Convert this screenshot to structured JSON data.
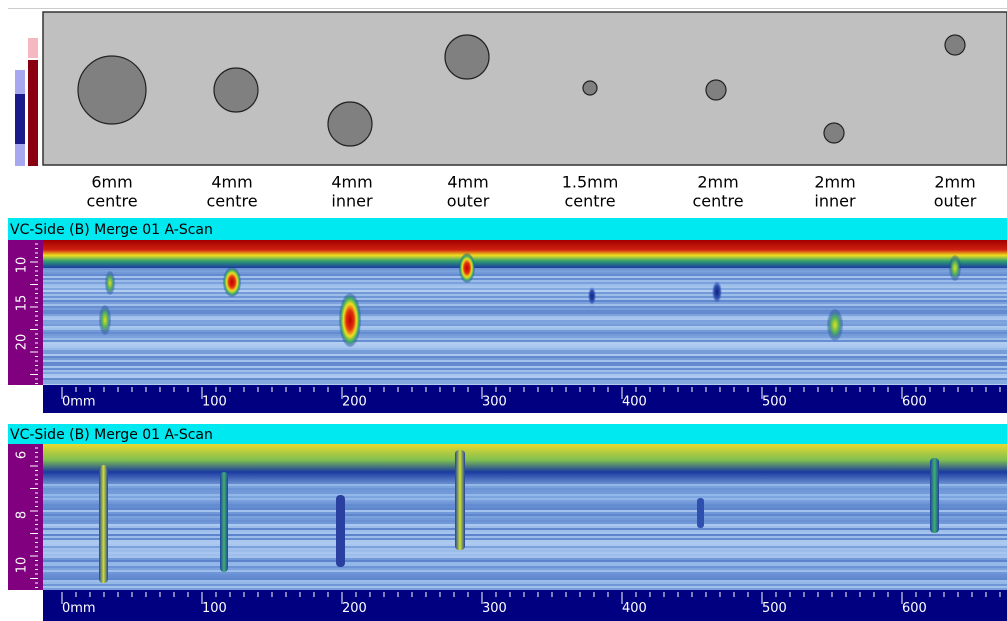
{
  "defects": [
    {
      "size": "6mm",
      "position": "centre"
    },
    {
      "size": "4mm",
      "position": "centre"
    },
    {
      "size": "4mm",
      "position": "inner"
    },
    {
      "size": "4mm",
      "position": "outer"
    },
    {
      "size": "1.5mm",
      "position": "centre"
    },
    {
      "size": "2mm",
      "position": "centre"
    },
    {
      "size": "2mm",
      "position": "inner"
    },
    {
      "size": "2mm",
      "position": "outer"
    }
  ],
  "scans": [
    {
      "title": "VC-Side (B) Merge 01 A-Scan",
      "depth_labels": [
        "10",
        "15",
        "20"
      ],
      "distance_labels": [
        "0mm",
        "100",
        "200",
        "300",
        "400",
        "500",
        "600"
      ]
    },
    {
      "title": "VC-Side (B) Merge 01 A-Scan",
      "depth_labels": [
        "6",
        "8",
        "10"
      ],
      "distance_labels": [
        "0mm",
        "100",
        "200",
        "300",
        "400",
        "500",
        "600"
      ]
    }
  ]
}
